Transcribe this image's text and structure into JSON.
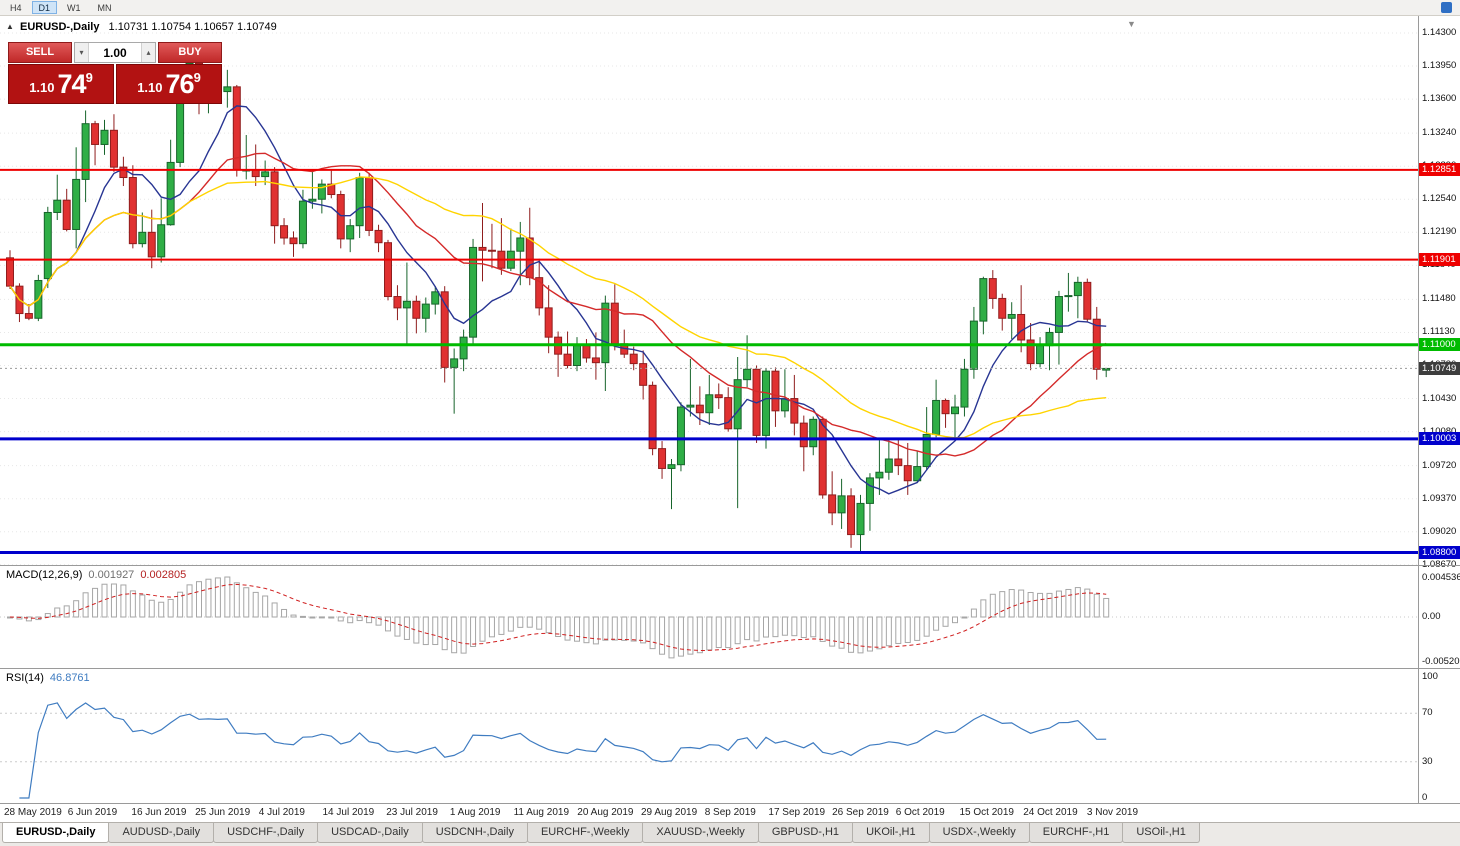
{
  "toolbar": {
    "timeframes": [
      {
        "label": "H4",
        "active": false
      },
      {
        "label": "D1",
        "active": true
      },
      {
        "label": "W1",
        "active": false
      },
      {
        "label": "MN",
        "active": false
      }
    ]
  },
  "chart_header": {
    "symbol_period": "EURUSD-,Daily",
    "ohlc": "1.10731 1.10754 1.10657 1.10749"
  },
  "trade_panel": {
    "sell_label": "SELL",
    "buy_label": "BUY",
    "volume": "1.00",
    "sell_price": {
      "prefix": "1.10",
      "big": "74",
      "sup": "9"
    },
    "buy_price": {
      "prefix": "1.10",
      "big": "76",
      "sup": "9"
    }
  },
  "price_axis": {
    "ticks": [
      "1.14300",
      "1.13950",
      "1.13600",
      "1.13240",
      "1.12890",
      "1.12540",
      "1.12190",
      "1.11840",
      "1.11480",
      "1.11130",
      "1.10780",
      "1.10430",
      "1.10080",
      "1.09720",
      "1.09370",
      "1.09020",
      "1.08670"
    ]
  },
  "levels": [
    {
      "label": "1.12851",
      "price": 1.12851,
      "color": "#ee0000",
      "width": 2
    },
    {
      "label": "1.11901",
      "price": 1.11901,
      "color": "#ee0000",
      "width": 2
    },
    {
      "label": "1.11000",
      "price": 1.11,
      "color": "#00bb00",
      "width": 3
    },
    {
      "label": "1.10003",
      "price": 1.10003,
      "color": "#0000cc",
      "width": 3
    },
    {
      "label": "1.08800",
      "price": 1.088,
      "color": "#0000cc",
      "width": 3
    }
  ],
  "current_price": {
    "label": "1.10749",
    "price": 1.10749,
    "color": "#3d3d3d"
  },
  "macd": {
    "name": "MACD(12,26,9)",
    "main_value": "0.001927",
    "signal_value": "0.002805",
    "axis": [
      "0.004536",
      "0.00",
      "-0.005205"
    ]
  },
  "rsi": {
    "name": "RSI(14)",
    "value": "46.8761",
    "axis": [
      "100",
      "70",
      "30",
      "0"
    ],
    "levels": [
      70,
      30
    ]
  },
  "date_axis": [
    "28 May 2019",
    "6 Jun 2019",
    "16 Jun 2019",
    "25 Jun 2019",
    "4 Jul 2019",
    "14 Jul 2019",
    "23 Jul 2019",
    "1 Aug 2019",
    "11 Aug 2019",
    "20 Aug 2019",
    "29 Aug 2019",
    "8 Sep 2019",
    "17 Sep 2019",
    "26 Sep 2019",
    "6 Oct 2019",
    "15 Oct 2019",
    "24 Oct 2019",
    "3 Nov 2019"
  ],
  "tabs": [
    {
      "label": "EURUSD-,Daily",
      "active": true
    },
    {
      "label": "AUDUSD-,Daily",
      "active": false
    },
    {
      "label": "USDCHF-,Daily",
      "active": false
    },
    {
      "label": "USDCAD-,Daily",
      "active": false
    },
    {
      "label": "USDCNH-,Daily",
      "active": false
    },
    {
      "label": "EURCHF-,Weekly",
      "active": false
    },
    {
      "label": "XAUUSD-,Weekly",
      "active": false
    },
    {
      "label": "GBPUSD-,H1",
      "active": false
    },
    {
      "label": "UKOil-,H1",
      "active": false
    },
    {
      "label": "USDX-,Weekly",
      "active": false
    },
    {
      "label": "EURCHF-,H1",
      "active": false
    },
    {
      "label": "USOil-,H1",
      "active": false
    }
  ],
  "chart_data": {
    "type": "candlestick",
    "symbol": "EURUSD-",
    "timeframe": "Daily",
    "visible_price_range": [
      1.0867,
      1.143
    ],
    "horizontal_lines": [
      1.12851,
      1.11901,
      1.11,
      1.10003,
      1.088
    ],
    "colors": {
      "up": "#2fae46",
      "up_border": "#17642b",
      "down": "#e03131",
      "down_border": "#8f1d1d",
      "macd_signal": "#d02020",
      "macd_hist": "#a6a6a6",
      "rsi": "#3f7cc1"
    },
    "moving_averages": [
      {
        "period": 8,
        "color": "#283593"
      },
      {
        "period": 20,
        "color": "#d42a2a"
      },
      {
        "period": 34,
        "color": "#ffd400"
      }
    ],
    "ohlc": [
      [
        1.1192,
        1.12,
        1.1159,
        1.1162
      ],
      [
        1.1162,
        1.1165,
        1.1124,
        1.1133
      ],
      [
        1.1133,
        1.1143,
        1.1126,
        1.1128
      ],
      [
        1.1128,
        1.1174,
        1.1125,
        1.1168
      ],
      [
        1.117,
        1.1246,
        1.116,
        1.124
      ],
      [
        1.124,
        1.128,
        1.1232,
        1.1253
      ],
      [
        1.1253,
        1.1265,
        1.122,
        1.1222
      ],
      [
        1.1222,
        1.1309,
        1.1202,
        1.1275
      ],
      [
        1.1275,
        1.1348,
        1.1251,
        1.1334
      ],
      [
        1.1334,
        1.1337,
        1.129,
        1.1312
      ],
      [
        1.1312,
        1.1338,
        1.1301,
        1.1327
      ],
      [
        1.1327,
        1.1344,
        1.1283,
        1.1288
      ],
      [
        1.1288,
        1.1299,
        1.1268,
        1.1277
      ],
      [
        1.1277,
        1.129,
        1.1202,
        1.1207
      ],
      [
        1.1207,
        1.124,
        1.1203,
        1.1219
      ],
      [
        1.1219,
        1.1243,
        1.1181,
        1.1193
      ],
      [
        1.1193,
        1.1255,
        1.1187,
        1.1227
      ],
      [
        1.1227,
        1.1317,
        1.1226,
        1.1293
      ],
      [
        1.1293,
        1.1378,
        1.1288,
        1.1369
      ],
      [
        1.1369,
        1.1404,
        1.1366,
        1.1398
      ],
      [
        1.1398,
        1.1412,
        1.1344,
        1.1366
      ],
      [
        1.1366,
        1.1391,
        1.1345,
        1.1371
      ],
      [
        1.1371,
        1.139,
        1.136,
        1.1368
      ],
      [
        1.1368,
        1.1391,
        1.1351,
        1.1373
      ],
      [
        1.1373,
        1.1375,
        1.1278,
        1.1285
      ],
      [
        1.1285,
        1.1322,
        1.1275,
        1.1285
      ],
      [
        1.1285,
        1.1312,
        1.1268,
        1.1278
      ],
      [
        1.1278,
        1.1295,
        1.1269,
        1.1283
      ],
      [
        1.1283,
        1.1288,
        1.1207,
        1.1226
      ],
      [
        1.1226,
        1.1234,
        1.1206,
        1.1213
      ],
      [
        1.1213,
        1.122,
        1.1193,
        1.1207
      ],
      [
        1.1207,
        1.1264,
        1.1202,
        1.1252
      ],
      [
        1.1252,
        1.1286,
        1.1244,
        1.1254
      ],
      [
        1.1254,
        1.1275,
        1.1239,
        1.127
      ],
      [
        1.127,
        1.1285,
        1.1255,
        1.1259
      ],
      [
        1.1259,
        1.1263,
        1.1202,
        1.1212
      ],
      [
        1.1212,
        1.1233,
        1.1198,
        1.1226
      ],
      [
        1.1226,
        1.1282,
        1.1213,
        1.1277
      ],
      [
        1.1277,
        1.1282,
        1.1215,
        1.1221
      ],
      [
        1.1221,
        1.1227,
        1.1198,
        1.1208
      ],
      [
        1.1208,
        1.1211,
        1.1147,
        1.1151
      ],
      [
        1.1151,
        1.1163,
        1.1126,
        1.1139
      ],
      [
        1.1139,
        1.1187,
        1.1101,
        1.1146
      ],
      [
        1.1146,
        1.1152,
        1.1112,
        1.1128
      ],
      [
        1.1128,
        1.115,
        1.1113,
        1.1143
      ],
      [
        1.1143,
        1.1162,
        1.1132,
        1.1156
      ],
      [
        1.1156,
        1.1162,
        1.106,
        1.1076
      ],
      [
        1.1076,
        1.1096,
        1.1027,
        1.1085
      ],
      [
        1.1085,
        1.1116,
        1.1072,
        1.1108
      ],
      [
        1.1108,
        1.1212,
        1.1101,
        1.1203
      ],
      [
        1.1203,
        1.125,
        1.1167,
        1.12
      ],
      [
        1.12,
        1.1228,
        1.1181,
        1.1199
      ],
      [
        1.1199,
        1.1234,
        1.1174,
        1.1181
      ],
      [
        1.1181,
        1.1223,
        1.1178,
        1.1199
      ],
      [
        1.1199,
        1.123,
        1.1163,
        1.1213
      ],
      [
        1.1213,
        1.1245,
        1.1163,
        1.1171
      ],
      [
        1.1171,
        1.1191,
        1.1131,
        1.1139
      ],
      [
        1.1139,
        1.1163,
        1.1091,
        1.1108
      ],
      [
        1.1108,
        1.1114,
        1.1066,
        1.109
      ],
      [
        1.109,
        1.1114,
        1.1075,
        1.1078
      ],
      [
        1.1078,
        1.1108,
        1.1072,
        1.1099
      ],
      [
        1.1099,
        1.1106,
        1.1081,
        1.1086
      ],
      [
        1.1086,
        1.1113,
        1.1063,
        1.1081
      ],
      [
        1.1081,
        1.1152,
        1.1051,
        1.1144
      ],
      [
        1.1144,
        1.1164,
        1.1094,
        1.1101
      ],
      [
        1.1101,
        1.1116,
        1.1086,
        1.109
      ],
      [
        1.109,
        1.1098,
        1.1073,
        1.108
      ],
      [
        1.108,
        1.1094,
        1.1042,
        1.1057
      ],
      [
        1.1057,
        1.1061,
        1.0983,
        1.099
      ],
      [
        1.099,
        1.0998,
        1.0958,
        1.0969
      ],
      [
        1.0969,
        1.0979,
        1.0926,
        1.0973
      ],
      [
        1.0973,
        1.1039,
        1.0966,
        1.1034
      ],
      [
        1.1034,
        1.1085,
        1.1024,
        1.1036
      ],
      [
        1.1036,
        1.1056,
        1.1015,
        1.1028
      ],
      [
        1.1028,
        1.1068,
        1.1015,
        1.1047
      ],
      [
        1.1047,
        1.1059,
        1.1032,
        1.1044
      ],
      [
        1.1044,
        1.1055,
        1.1008,
        1.1011
      ],
      [
        1.1011,
        1.1087,
        1.0927,
        1.1063
      ],
      [
        1.1063,
        1.111,
        1.1055,
        1.1074
      ],
      [
        1.1074,
        1.1078,
        1.0996,
        1.1004
      ],
      [
        1.1004,
        1.1075,
        1.099,
        1.1072
      ],
      [
        1.1072,
        1.1076,
        1.1013,
        1.103
      ],
      [
        1.103,
        1.1074,
        1.1023,
        1.1043
      ],
      [
        1.1043,
        1.1068,
        1.1004,
        1.1017
      ],
      [
        1.1017,
        1.1025,
        1.0966,
        1.0992
      ],
      [
        1.0992,
        1.1024,
        1.0983,
        1.1021
      ],
      [
        1.1021,
        1.1024,
        1.0937,
        1.0941
      ],
      [
        1.0941,
        1.0966,
        1.0909,
        1.0922
      ],
      [
        1.0922,
        1.0958,
        1.0905,
        1.094
      ],
      [
        1.094,
        1.0948,
        1.0885,
        1.0899
      ],
      [
        1.0899,
        1.0941,
        1.0879,
        1.0932
      ],
      [
        1.0932,
        1.0964,
        1.0903,
        1.0959
      ],
      [
        1.0959,
        1.0999,
        1.0941,
        1.0965
      ],
      [
        1.0965,
        1.0999,
        1.0957,
        1.0979
      ],
      [
        1.0979,
        1.1,
        1.0962,
        1.0972
      ],
      [
        1.0972,
        1.0996,
        1.0941,
        1.0956
      ],
      [
        1.0956,
        1.0988,
        1.0955,
        1.0971
      ],
      [
        1.0971,
        1.1034,
        1.0967,
        1.1005
      ],
      [
        1.1005,
        1.1063,
        1.1002,
        1.1041
      ],
      [
        1.1041,
        1.1043,
        1.1012,
        1.1027
      ],
      [
        1.1027,
        1.1047,
        1.1001,
        1.1034
      ],
      [
        1.1034,
        1.1085,
        1.1024,
        1.1074
      ],
      [
        1.1074,
        1.114,
        1.1064,
        1.1125
      ],
      [
        1.1125,
        1.1172,
        1.1111,
        1.117
      ],
      [
        1.117,
        1.1179,
        1.1138,
        1.1149
      ],
      [
        1.1149,
        1.1154,
        1.1115,
        1.1128
      ],
      [
        1.1128,
        1.1145,
        1.1106,
        1.1132
      ],
      [
        1.1132,
        1.1163,
        1.1092,
        1.1105
      ],
      [
        1.1105,
        1.1123,
        1.1073,
        1.108
      ],
      [
        1.108,
        1.1108,
        1.1076,
        1.1099
      ],
      [
        1.1099,
        1.1118,
        1.1073,
        1.1113
      ],
      [
        1.1113,
        1.1157,
        1.1079,
        1.1151
      ],
      [
        1.1151,
        1.1176,
        1.1135,
        1.1152
      ],
      [
        1.1152,
        1.1172,
        1.1128,
        1.1166
      ],
      [
        1.1166,
        1.117,
        1.1124,
        1.1127
      ],
      [
        1.1127,
        1.114,
        1.1063,
        1.1074
      ],
      [
        1.10731,
        1.10754,
        1.10657,
        1.10749
      ]
    ]
  }
}
